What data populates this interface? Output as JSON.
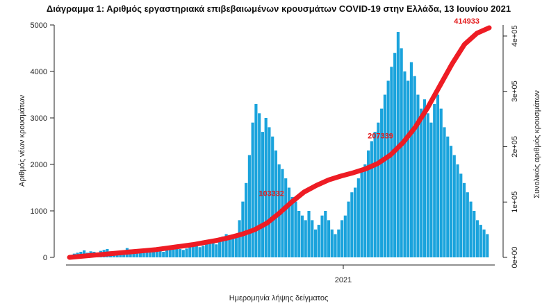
{
  "chart_data": {
    "type": "bar",
    "title": "Διάγραμμα 1: Αριθμός εργαστηριακά επιβεβαιωμένων κρουσμάτων COVID-19 στην Ελλάδα, 13 Ιουνίου 2021",
    "xlabel": "Ημερομηνία λήψης δείγματος",
    "ylabel": "Αριθμός νέων κρουσμάτων",
    "y2label": "Συνολικός αριθμός κρουσμάτων",
    "ylim": [
      0,
      5000
    ],
    "y2lim": [
      0,
      420000
    ],
    "yticks": [
      "0",
      "1000",
      "2000",
      "3000",
      "4000",
      "5000"
    ],
    "y2ticks": [
      "0e+00",
      "1e+05",
      "2e+05",
      "3e+05",
      "4e+05"
    ],
    "xtick_label": "2021",
    "bar_color": "#1aa3dc",
    "line_color": "#ee1c24",
    "series": [
      {
        "name": "",
        "kind": "bars",
        "values": [
          40,
          80,
          100,
          120,
          150,
          100,
          130,
          120,
          100,
          140,
          160,
          180,
          130,
          90,
          80,
          120,
          150,
          200,
          170,
          130,
          110,
          100,
          120,
          150,
          180,
          200,
          160,
          140,
          120,
          150,
          180,
          200,
          220,
          180,
          160,
          190,
          250,
          300,
          270,
          220,
          250,
          300,
          350,
          320,
          280,
          350,
          450,
          500,
          480,
          420,
          500,
          800,
          1200,
          1600,
          2200,
          2900,
          3300,
          3100,
          2700,
          3000,
          2800,
          2600,
          2300,
          2000,
          1900,
          1700,
          1500,
          1300,
          1200,
          1000,
          900,
          800,
          1000,
          800,
          600,
          700,
          900,
          1000,
          800,
          600,
          500,
          600,
          800,
          900,
          1200,
          1400,
          1500,
          1700,
          1900,
          2000,
          2300,
          2500,
          2700,
          2900,
          3200,
          3500,
          3800,
          4100,
          4400,
          4850,
          4500,
          4000,
          3800,
          4200,
          3900,
          3500,
          3200,
          3400,
          3100,
          2900,
          3300,
          3500,
          3200,
          2800,
          2600,
          2400,
          2200,
          2000,
          1800,
          1600,
          1400,
          1200,
          1000,
          800,
          700,
          600,
          500
        ]
      },
      {
        "name": "",
        "kind": "cumulative-line",
        "values": [
          0,
          2000,
          4000,
          6000,
          8000,
          10000,
          12000,
          14000,
          17000,
          20000,
          23000,
          27000,
          31000,
          36000,
          42000,
          50000,
          62000,
          80000,
          100000,
          118000,
          130000,
          140000,
          147000,
          153000,
          160000,
          170000,
          185000,
          207000,
          235000,
          270000,
          310000,
          350000,
          385000,
          405000,
          414933
        ]
      }
    ],
    "annotations": [
      {
        "text": "414933",
        "y2": 414933
      },
      {
        "text": "207339",
        "y2": 207339
      },
      {
        "text": "103332",
        "y2": 103332
      }
    ]
  }
}
